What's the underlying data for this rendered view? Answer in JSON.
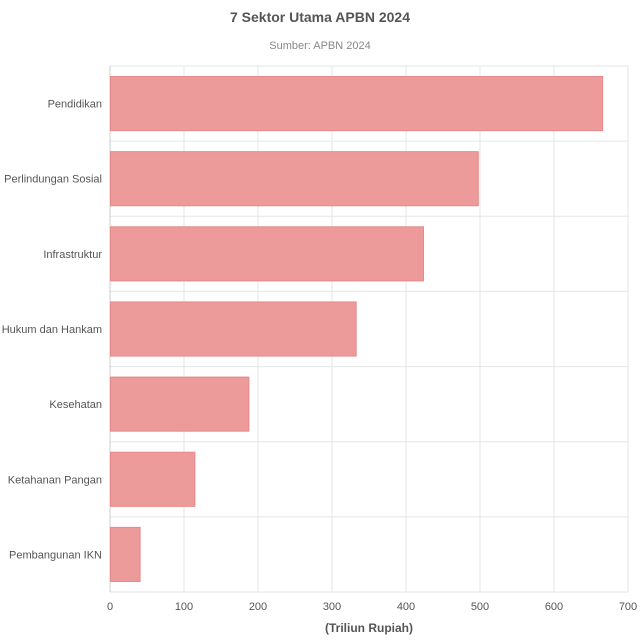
{
  "chart_data": {
    "type": "bar",
    "orientation": "horizontal",
    "title": "7 Sektor Utama APBN 2024",
    "subtitle": "Sumber: APBN 2024",
    "xlabel": "(Triliun Rupiah)",
    "ylabel": "",
    "categories": [
      "Pendidikan",
      "Perlindungan Sosial",
      "Infrastruktur",
      "Hukum dan Hankam",
      "Kesehatan",
      "Ketahanan Pangan",
      "Pembangunan IKN"
    ],
    "values": [
      665,
      497,
      423,
      332,
      187,
      114,
      40
    ],
    "xlim": [
      0,
      700
    ],
    "xticks": [
      0,
      100,
      200,
      300,
      400,
      500,
      600,
      700
    ],
    "grid": true,
    "legend": false,
    "colors": {
      "bar_fill": "#ec9a9a",
      "bar_stroke": "#e58a8a"
    }
  }
}
